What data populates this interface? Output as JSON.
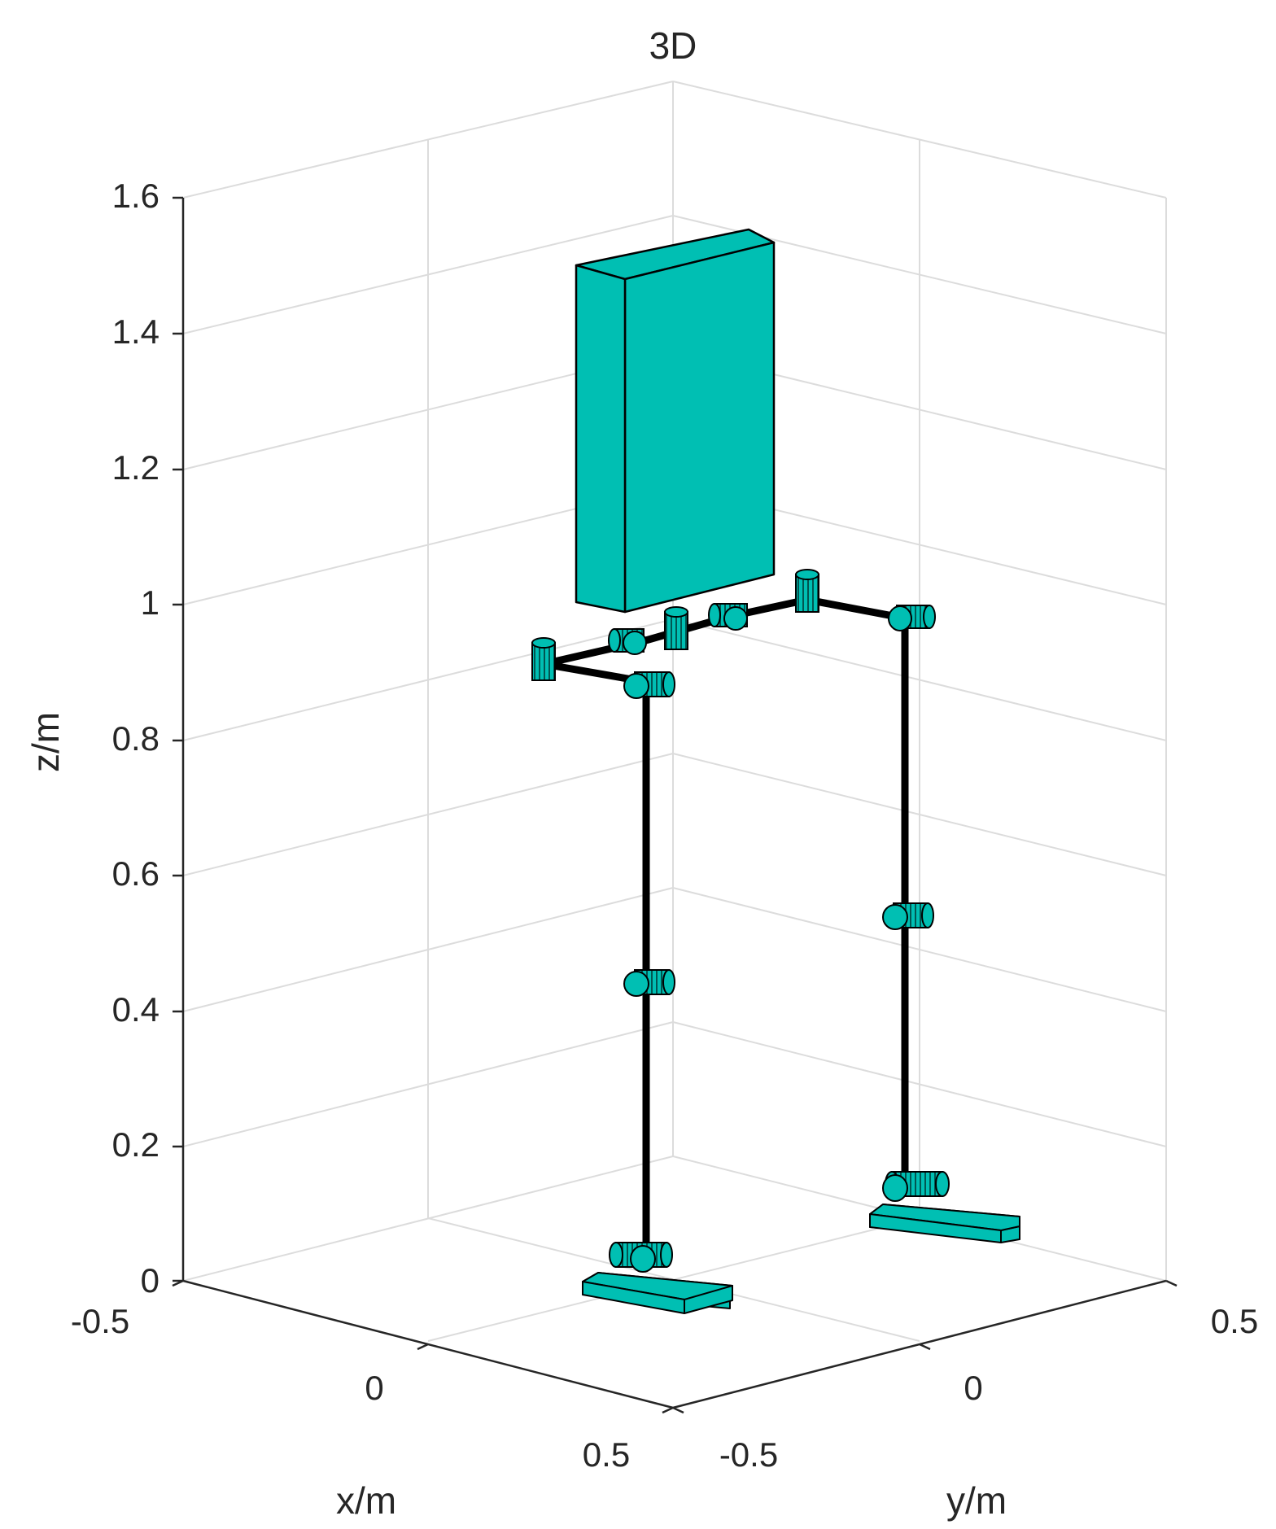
{
  "figure": {
    "title": "3D",
    "axes": {
      "x": {
        "label": "x/m",
        "ticks": [
          "-0.5",
          "0",
          "0.5"
        ],
        "range": [
          -0.5,
          0.5
        ]
      },
      "y": {
        "label": "y/m",
        "ticks": [
          "-0.5",
          "0",
          "0.5"
        ],
        "range": [
          -0.5,
          0.5
        ]
      },
      "z": {
        "label": "z/m",
        "ticks": [
          "0",
          "0.2",
          "0.4",
          "0.6",
          "0.8",
          "1",
          "1.2",
          "1.4",
          "1.6"
        ],
        "range": [
          0,
          1.6
        ]
      }
    },
    "grid": true,
    "colors": {
      "body": "#00BFB3",
      "link": "#000000",
      "grid": "#dcdcdc",
      "axis": "#262626"
    },
    "model": {
      "parts": [
        "torso",
        "pelvis",
        "left-leg",
        "right-leg",
        "left-foot",
        "right-foot"
      ],
      "joint_icon": "cylinder-joint-icon"
    }
  }
}
